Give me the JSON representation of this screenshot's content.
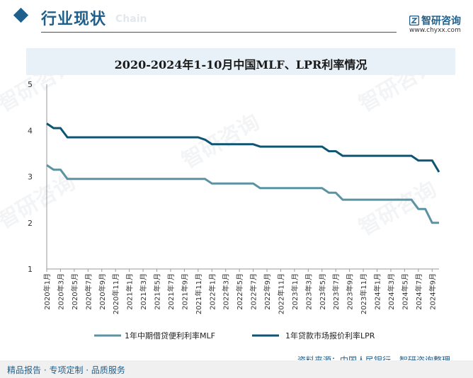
{
  "header": {
    "section_title": "行业现状",
    "section_subtitle": "Chain",
    "brand_name": "智研咨询",
    "brand_url": "www.chyxx.com"
  },
  "footer": {
    "left_text": "精品报告 · 专项定制 · 品质服务",
    "source": "资料来源：中国人民银行、智研咨询整理"
  },
  "colors": {
    "accent": "#1f5f8b",
    "mlf": "#5b93a3",
    "lpr": "#0d5573"
  },
  "chart_data": {
    "type": "line",
    "title": "2020-2024年1-10月中国MLF、LPR利率情况",
    "xlabel": "",
    "ylabel": "",
    "ylim": [
      1,
      5
    ],
    "yticks": [
      1,
      2,
      3,
      4,
      5
    ],
    "grid": false,
    "legend": "bottom",
    "categories": [
      "2020年1月",
      "2020年2月",
      "2020年3月",
      "2020年4月",
      "2020年5月",
      "2020年6月",
      "2020年7月",
      "2020年8月",
      "2020年9月",
      "2020年10月",
      "2020年11月",
      "2020年12月",
      "2021年1月",
      "2021年2月",
      "2021年3月",
      "2021年4月",
      "2021年5月",
      "2021年6月",
      "2021年7月",
      "2021年8月",
      "2021年9月",
      "2021年10月",
      "2021年11月",
      "2021年12月",
      "2022年1月",
      "2022年2月",
      "2022年3月",
      "2022年4月",
      "2022年5月",
      "2022年6月",
      "2022年7月",
      "2022年8月",
      "2022年9月",
      "2022年10月",
      "2022年11月",
      "2022年12月",
      "2023年1月",
      "2023年2月",
      "2023年3月",
      "2023年4月",
      "2023年5月",
      "2023年6月",
      "2023年7月",
      "2023年8月",
      "2023年9月",
      "2023年10月",
      "2023年11月",
      "2023年12月",
      "2024年1月",
      "2024年2月",
      "2024年3月",
      "2024年4月",
      "2024年5月",
      "2024年6月",
      "2024年7月",
      "2024年8月",
      "2024年9月",
      "2024年10月"
    ],
    "tick_labels": [
      "2020年1月",
      "2020年3月",
      "2020年5月",
      "2020年7月",
      "2020年9月",
      "2020年11月",
      "2021年1月",
      "2021年3月",
      "2021年5月",
      "2021年7月",
      "2021年9月",
      "2021年11月",
      "2022年1月",
      "2022年3月",
      "2022年5月",
      "2022年7月",
      "2022年9月",
      "2022年11月",
      "2023年1月",
      "2023年3月",
      "2023年5月",
      "2023年7月",
      "2023年9月",
      "2023年11月",
      "2024年1月",
      "2024年3月",
      "2024年5月",
      "2024年7月",
      "2024年9月"
    ],
    "series": [
      {
        "name": "1年中期借贷便利利率MLF",
        "color": "#5b93a3",
        "values": [
          3.25,
          3.15,
          3.15,
          2.95,
          2.95,
          2.95,
          2.95,
          2.95,
          2.95,
          2.95,
          2.95,
          2.95,
          2.95,
          2.95,
          2.95,
          2.95,
          2.95,
          2.95,
          2.95,
          2.95,
          2.95,
          2.95,
          2.95,
          2.95,
          2.85,
          2.85,
          2.85,
          2.85,
          2.85,
          2.85,
          2.85,
          2.75,
          2.75,
          2.75,
          2.75,
          2.75,
          2.75,
          2.75,
          2.75,
          2.75,
          2.75,
          2.65,
          2.65,
          2.5,
          2.5,
          2.5,
          2.5,
          2.5,
          2.5,
          2.5,
          2.5,
          2.5,
          2.5,
          2.5,
          2.3,
          2.3,
          2.0,
          2.0
        ]
      },
      {
        "name": "1年贷款市场报价利率LPR",
        "color": "#0d5573",
        "values": [
          4.15,
          4.05,
          4.05,
          3.85,
          3.85,
          3.85,
          3.85,
          3.85,
          3.85,
          3.85,
          3.85,
          3.85,
          3.85,
          3.85,
          3.85,
          3.85,
          3.85,
          3.85,
          3.85,
          3.85,
          3.85,
          3.85,
          3.85,
          3.8,
          3.7,
          3.7,
          3.7,
          3.7,
          3.7,
          3.7,
          3.7,
          3.65,
          3.65,
          3.65,
          3.65,
          3.65,
          3.65,
          3.65,
          3.65,
          3.65,
          3.65,
          3.55,
          3.55,
          3.45,
          3.45,
          3.45,
          3.45,
          3.45,
          3.45,
          3.45,
          3.45,
          3.45,
          3.45,
          3.45,
          3.35,
          3.35,
          3.35,
          3.1
        ]
      }
    ]
  }
}
